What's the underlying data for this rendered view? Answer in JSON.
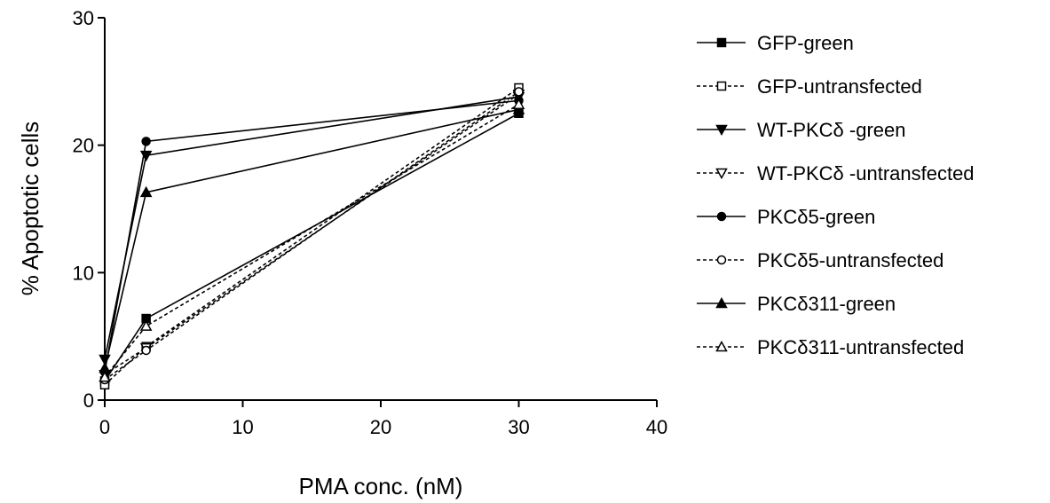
{
  "chart_data": {
    "type": "line",
    "title": "",
    "xlabel": "PMA conc. (nM)",
    "ylabel": "% Apoptotic cells",
    "xlim": [
      0,
      40
    ],
    "ylim": [
      0,
      30
    ],
    "xticks": [
      0,
      10,
      20,
      30,
      40
    ],
    "yticks": [
      0,
      10,
      20,
      30
    ],
    "grid": false,
    "legend_position": "right",
    "x": [
      0,
      3,
      30
    ],
    "series": [
      {
        "name": "GFP-green",
        "marker": "square",
        "filled": true,
        "dashed": false,
        "values": [
          1.5,
          6.4,
          22.5
        ]
      },
      {
        "name": "GFP-untransfected",
        "marker": "square",
        "filled": false,
        "dashed": true,
        "values": [
          1.2,
          4.2,
          24.5
        ]
      },
      {
        "name": "WT-PKCδ -green",
        "marker": "triangle-down",
        "filled": true,
        "dashed": false,
        "values": [
          3.2,
          19.2,
          23.8
        ]
      },
      {
        "name": "WT-PKCδ -untransfected",
        "marker": "triangle-down",
        "filled": false,
        "dashed": true,
        "values": [
          2.0,
          4.1,
          24.0
        ]
      },
      {
        "name": "PKCδ5-green",
        "marker": "circle",
        "filled": true,
        "dashed": false,
        "values": [
          2.2,
          20.3,
          23.5
        ]
      },
      {
        "name": "PKCδ5-untransfected",
        "marker": "circle",
        "filled": false,
        "dashed": true,
        "values": [
          1.6,
          3.9,
          24.2
        ]
      },
      {
        "name": "PKCδ311-green",
        "marker": "triangle-up",
        "filled": true,
        "dashed": false,
        "values": [
          2.5,
          16.3,
          22.8
        ]
      },
      {
        "name": "PKCδ311-untransfected",
        "marker": "triangle-up",
        "filled": false,
        "dashed": true,
        "values": [
          1.8,
          5.8,
          23.2
        ]
      }
    ]
  }
}
